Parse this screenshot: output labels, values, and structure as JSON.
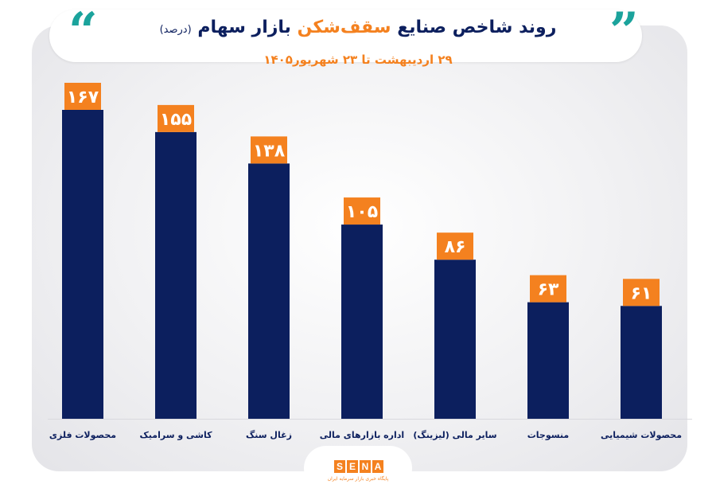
{
  "header": {
    "title_main": "روند شاخص صنایع",
    "title_highlight": "سقف‌شکن",
    "title_end": "بازار سهام",
    "title_unit": "(درصد)",
    "subtitle": "۲۹ اردیبهشت تا ۲۳ شهریور۱۴۰۵"
  },
  "logo": {
    "letters": [
      "S",
      "E",
      "N",
      "A"
    ],
    "tagline": "پایگاه خبری بازار سرمایه ایران"
  },
  "colors": {
    "bar": "#0c1f5e",
    "label_bg": "#f4811f",
    "accent": "#1ba39c"
  },
  "chart_data": {
    "type": "bar",
    "categories": [
      "محصولات فلزی",
      "کاشی و سرامیک",
      "زغال سنگ",
      "اداره بازارهای مالی",
      "سایر مالی (لیزینگ)",
      "منسوجات",
      "محصولات شیمیایی"
    ],
    "values": [
      167,
      155,
      138,
      105,
      86,
      63,
      61
    ],
    "value_labels": [
      "۱۶۷",
      "۱۵۵",
      "۱۳۸",
      "۱۰۵",
      "۸۶",
      "۶۳",
      "۶۱"
    ],
    "title": "روند شاخص صنایع سقف‌شکن بازار سهام (درصد)",
    "subtitle": "۲۹ اردیبهشت تا ۲۳ شهریور۱۴۰۵",
    "ylim": [
      0,
      167
    ],
    "grid": false,
    "legend": "none"
  }
}
